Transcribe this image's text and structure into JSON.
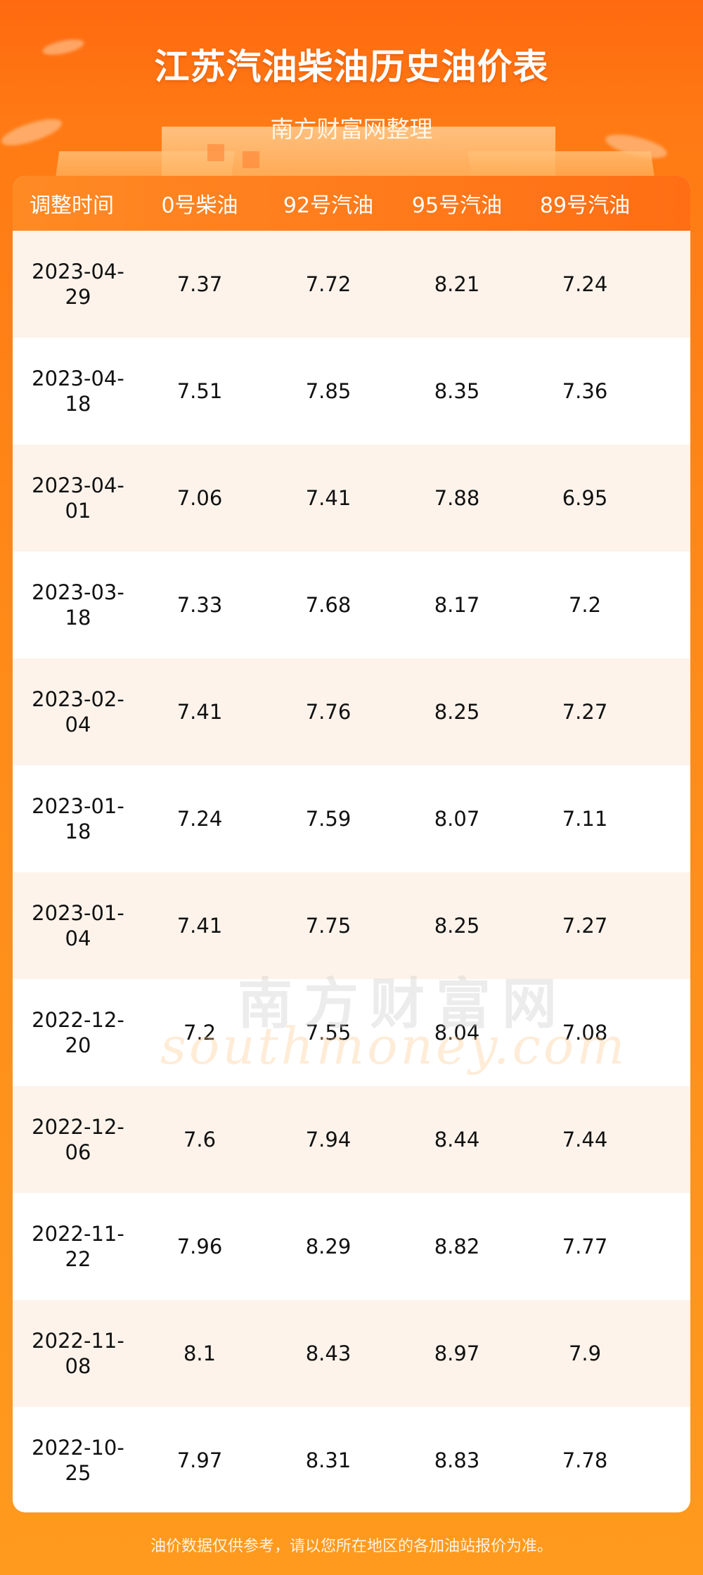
{
  "header": {
    "title": "江苏汽油柴油历史油价表",
    "subtitle": "南方财富网整理"
  },
  "table": {
    "columns": [
      "调整时间",
      "0号柴油",
      "92号汽油",
      "95号汽油",
      "89号汽油"
    ],
    "rows": [
      {
        "date": "2023-04-29",
        "diesel0": "7.37",
        "gas92": "7.72",
        "gas95": "8.21",
        "gas89": "7.24"
      },
      {
        "date": "2023-04-18",
        "diesel0": "7.51",
        "gas92": "7.85",
        "gas95": "8.35",
        "gas89": "7.36"
      },
      {
        "date": "2023-04-01",
        "diesel0": "7.06",
        "gas92": "7.41",
        "gas95": "7.88",
        "gas89": "6.95"
      },
      {
        "date": "2023-03-18",
        "diesel0": "7.33",
        "gas92": "7.68",
        "gas95": "8.17",
        "gas89": "7.2"
      },
      {
        "date": "2023-02-04",
        "diesel0": "7.41",
        "gas92": "7.76",
        "gas95": "8.25",
        "gas89": "7.27"
      },
      {
        "date": "2023-01-18",
        "diesel0": "7.24",
        "gas92": "7.59",
        "gas95": "8.07",
        "gas89": "7.11"
      },
      {
        "date": "2023-01-04",
        "diesel0": "7.41",
        "gas92": "7.75",
        "gas95": "8.25",
        "gas89": "7.27"
      },
      {
        "date": "2022-12-20",
        "diesel0": "7.2",
        "gas92": "7.55",
        "gas95": "8.04",
        "gas89": "7.08"
      },
      {
        "date": "2022-12-06",
        "diesel0": "7.6",
        "gas92": "7.94",
        "gas95": "8.44",
        "gas89": "7.44"
      },
      {
        "date": "2022-11-22",
        "diesel0": "7.96",
        "gas92": "8.29",
        "gas95": "8.82",
        "gas89": "7.77"
      },
      {
        "date": "2022-11-08",
        "diesel0": "8.1",
        "gas92": "8.43",
        "gas95": "8.97",
        "gas89": "7.9"
      },
      {
        "date": "2022-10-25",
        "diesel0": "7.97",
        "gas92": "8.31",
        "gas95": "8.83",
        "gas89": "7.78"
      }
    ]
  },
  "watermark": {
    "cn": "南方财富网",
    "en": "southmoney.com"
  },
  "footer": {
    "note": "油价数据仅供参考，请以您所在地区的各加油站报价为准。"
  }
}
